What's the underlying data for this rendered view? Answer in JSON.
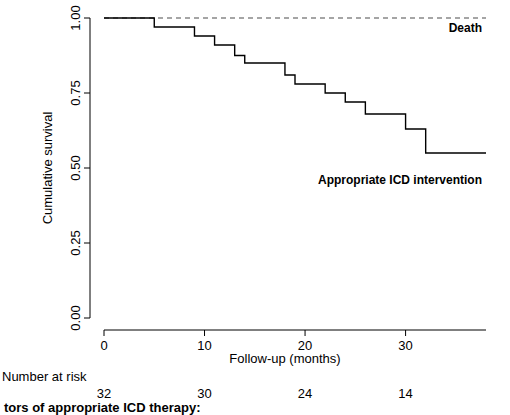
{
  "chart_data": {
    "type": "step",
    "y_label": "Cumulative survival",
    "x_label": "Follow-up (months)",
    "xlim": [
      0,
      38
    ],
    "xticks": [
      0,
      10,
      20,
      30
    ],
    "ylim": [
      0,
      1
    ],
    "yticks": [
      {
        "value": 0,
        "label": "0.00"
      },
      {
        "value": 0.25,
        "label": "0.25"
      },
      {
        "value": 0.5,
        "label": "0.50"
      },
      {
        "value": 0.75,
        "label": "0.75"
      },
      {
        "value": 1,
        "label": "1.00"
      }
    ],
    "grid": false,
    "series": [
      {
        "name": "Death",
        "color": "#888888",
        "line_style": "dashed",
        "x": [
          0,
          38
        ],
        "values": [
          1,
          1
        ]
      },
      {
        "name": "Appropriate ICD intervention",
        "color": "#000000",
        "line_style": "solid",
        "x": [
          0,
          5,
          9,
          11,
          13,
          14,
          18,
          19,
          22,
          24,
          26,
          30,
          32,
          38
        ],
        "values": [
          1,
          0.97,
          0.94,
          0.91,
          0.875,
          0.85,
          0.81,
          0.78,
          0.75,
          0.72,
          0.68,
          0.63,
          0.55,
          0.55
        ]
      }
    ],
    "risk_table": {
      "label": "Number at risk",
      "x": [
        0,
        10,
        20,
        30
      ],
      "values": [
        32,
        30,
        24,
        14
      ]
    },
    "caption": "tors of appropriate ICD therapy:"
  }
}
